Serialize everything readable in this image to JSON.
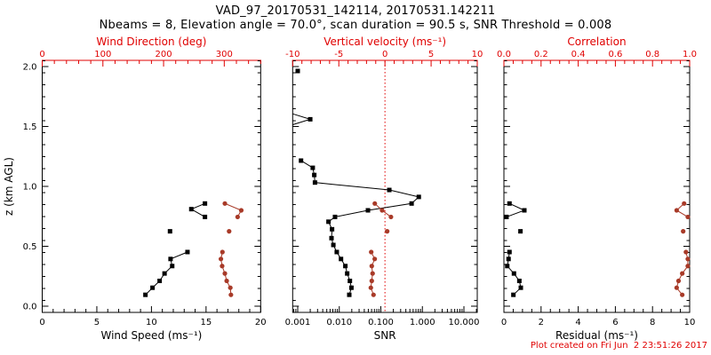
{
  "header": {
    "title": "VAD_97_20170531_142114, 20170531.142211",
    "subtitle": "Nbeams = 8, Elevation angle = 70.0°, scan duration = 90.5 s, SNR Threshold = 0.008"
  },
  "footer": {
    "created_note": "Plot created on Fri Jun  2 23:51:26 2017"
  },
  "colors": {
    "black": "#000000",
    "axis_red": "#e00000",
    "data_red": "#a83a28",
    "background": "#ffffff"
  },
  "chart_data": {
    "type": "line",
    "orientation": "vertical-profile",
    "grid": false,
    "legend": "none",
    "y_axis": {
      "label": "z (km AGL)",
      "majors": [
        0.0,
        0.5,
        1.0,
        1.5,
        2.0
      ],
      "labels": [
        "0.0",
        "0.5",
        "1.0",
        "1.5",
        "2.0"
      ],
      "minor_step": 0.1,
      "range": [
        -0.052,
        2.052
      ]
    },
    "panels": [
      {
        "name": "wind",
        "bottom_axis": {
          "label": "Wind Speed (ms⁻¹)",
          "scale": "linear",
          "majors": [
            0,
            5,
            10,
            15,
            20
          ],
          "labels": [
            "0",
            "5",
            "10",
            "15",
            "20"
          ],
          "minor_step": 1,
          "range": [
            0,
            20
          ]
        },
        "top_axis": {
          "label": "Wind Direction (deg)",
          "scale": "linear",
          "majors": [
            0,
            100,
            200,
            300
          ],
          "labels": [
            "0",
            "100",
            "200",
            "300"
          ],
          "minor_step": 20,
          "range": [
            0,
            360
          ]
        },
        "series": [
          {
            "name": "wind-speed",
            "color": "black",
            "axis": "bottom",
            "marker": "square",
            "segments": [
              [
                [
                  14.9,
                  0.857
                ],
                [
                  13.65,
                  0.81
                ],
                [
                  14.9,
                  0.745
                ]
              ],
              [
                [
                  11.7,
                  0.625
                ]
              ],
              [
                [
                  13.3,
                  0.452
                ],
                [
                  11.75,
                  0.394
                ],
                [
                  11.9,
                  0.335
                ],
                [
                  11.2,
                  0.273
                ],
                [
                  10.75,
                  0.211
                ],
                [
                  10.1,
                  0.154
                ],
                [
                  9.45,
                  0.095
                ]
              ]
            ]
          },
          {
            "name": "wind-direction",
            "color": "data_red",
            "axis": "top",
            "marker": "circle",
            "segments": [
              [
                [
                  301,
                  0.857
                ],
                [
                  328,
                  0.8
                ],
                [
                  322,
                  0.745
                ]
              ],
              [
                [
                  308,
                  0.625
                ]
              ],
              [
                [
                  297,
                  0.452
                ],
                [
                  294.5,
                  0.394
                ],
                [
                  296.5,
                  0.335
                ],
                [
                  301,
                  0.273
                ],
                [
                  304,
                  0.211
                ],
                [
                  310,
                  0.154
                ],
                [
                  311,
                  0.095
                ]
              ]
            ]
          }
        ]
      },
      {
        "name": "snr",
        "bottom_axis": {
          "label": "SNR",
          "scale": "log",
          "majors": [
            0.001,
            0.01,
            0.1,
            1,
            10
          ],
          "labels": [
            "0.001",
            "0.010",
            "0.100",
            "1.000",
            "10.000"
          ],
          "range": [
            0.00076,
            21
          ]
        },
        "top_axis": {
          "label": "Vertical velocity (ms⁻¹)",
          "scale": "linear",
          "majors": [
            -10,
            -5,
            0,
            5,
            10
          ],
          "labels": [
            "-10",
            "-5",
            "0",
            "5",
            "10"
          ],
          "minor_step": 1,
          "range": [
            -10,
            10
          ]
        },
        "zero_line": {
          "value": 0,
          "style": "dotted",
          "color": "axis_red"
        },
        "series": [
          {
            "name": "snr-profile",
            "color": "black",
            "axis": "bottom",
            "marker": "square",
            "segments": [
              [
                [
                  0.001,
                  1.963
                ]
              ],
              [
                [
                  0.00076,
                  1.605,
                  0
                ],
                [
                  0.002,
                  1.56
                ],
                [
                  0.00076,
                  1.515,
                  0
                ]
              ],
              [
                [
                  0.0012,
                  1.215
                ],
                [
                  0.0023,
                  1.155
                ],
                [
                  0.0025,
                  1.095
                ],
                [
                  0.0026,
                  1.032
                ],
                [
                  0.16,
                  0.97
                ],
                [
                  0.82,
                  0.912
                ],
                [
                  0.55,
                  0.857
                ],
                [
                  0.049,
                  0.8
                ],
                [
                  0.0079,
                  0.745
                ],
                [
                  0.0055,
                  0.705
                ],
                [
                  0.0067,
                  0.642
                ],
                [
                  0.0065,
                  0.568
                ],
                [
                  0.0072,
                  0.511
                ],
                [
                  0.0087,
                  0.452
                ],
                [
                  0.011,
                  0.394
                ],
                [
                  0.014,
                  0.335
                ],
                [
                  0.0155,
                  0.273
                ],
                [
                  0.018,
                  0.211
                ],
                [
                  0.0196,
                  0.154
                ],
                [
                  0.0174,
                  0.095
                ]
              ]
            ]
          },
          {
            "name": "vertical-velocity",
            "color": "data_red",
            "axis": "top",
            "marker": "circle",
            "segments": [
              [
                [
                  -1.1,
                  0.857
                ],
                [
                  -0.31,
                  0.8
                ],
                [
                  0.65,
                  0.745
                ]
              ],
              [
                [
                  0.24,
                  0.625
                ]
              ],
              [
                [
                  -1.49,
                  0.452
                ],
                [
                  -1.11,
                  0.394
                ],
                [
                  -1.43,
                  0.335
                ],
                [
                  -1.34,
                  0.273
                ],
                [
                  -1.43,
                  0.211
                ],
                [
                  -1.53,
                  0.154
                ],
                [
                  -1.24,
                  0.095
                ]
              ]
            ]
          }
        ]
      },
      {
        "name": "residual",
        "bottom_axis": {
          "label": "Residual (ms⁻¹)",
          "scale": "linear",
          "majors": [
            0,
            2,
            4,
            6,
            8,
            10
          ],
          "labels": [
            "0",
            "2",
            "4",
            "6",
            "8",
            "10"
          ],
          "minor_step": 0.5,
          "range": [
            0,
            10
          ]
        },
        "top_axis": {
          "label": "Correlation",
          "scale": "linear",
          "majors": [
            0.0,
            0.2,
            0.4,
            0.6,
            0.8,
            1.0
          ],
          "labels": [
            "0.0",
            "0.2",
            "0.4",
            "0.6",
            "0.8",
            "1.0"
          ],
          "minor_step": 0.05,
          "range": [
            0,
            1
          ]
        },
        "series": [
          {
            "name": "residual-profile",
            "color": "black",
            "axis": "bottom",
            "marker": "square",
            "segments": [
              [
                [
                  0.3,
                  0.857
                ],
                [
                  1.1,
                  0.8
                ],
                [
                  0.14,
                  0.745
                ]
              ],
              [
                [
                  0.89,
                  0.625
                ]
              ],
              [
                [
                  0.3,
                  0.452
                ],
                [
                  0.25,
                  0.394
                ],
                [
                  0.18,
                  0.335
                ],
                [
                  0.54,
                  0.273
                ],
                [
                  0.83,
                  0.211
                ],
                [
                  0.91,
                  0.154
                ],
                [
                  0.51,
                  0.095
                ]
              ]
            ]
          },
          {
            "name": "correlation-profile",
            "color": "data_red",
            "axis": "top",
            "marker": "circle",
            "segments": [
              [
                [
                  0.97,
                  0.857
                ],
                [
                  0.93,
                  0.8
                ],
                [
                  0.99,
                  0.745
                ]
              ],
              [
                [
                  0.965,
                  0.625
                ]
              ],
              [
                [
                  0.98,
                  0.452
                ],
                [
                  0.99,
                  0.394
                ],
                [
                  0.99,
                  0.335
                ],
                [
                  0.96,
                  0.273
                ],
                [
                  0.94,
                  0.211
                ],
                [
                  0.93,
                  0.154
                ],
                [
                  0.96,
                  0.095
                ]
              ]
            ]
          }
        ]
      }
    ]
  }
}
